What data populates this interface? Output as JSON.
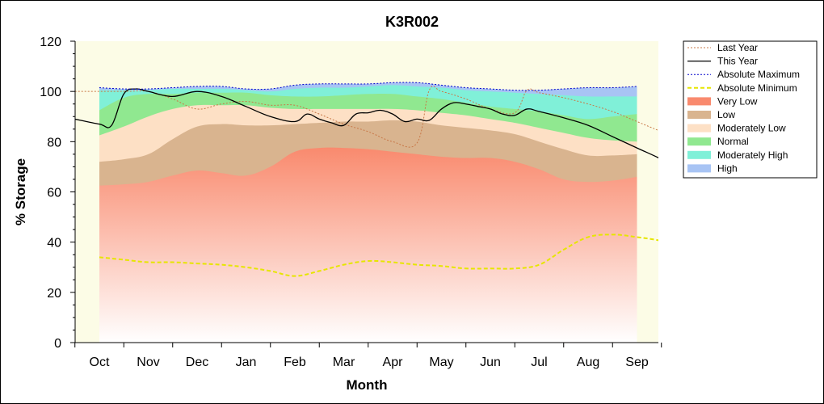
{
  "chart_data": {
    "type": "area",
    "title": "K3R002",
    "xlabel": "Month",
    "ylabel": "% Storage",
    "ylim": [
      0,
      120
    ],
    "yticks": [
      0,
      20,
      40,
      60,
      80,
      100,
      120
    ],
    "months": [
      "Oct",
      "Nov",
      "Dec",
      "Jan",
      "Feb",
      "Mar",
      "Apr",
      "May",
      "Jun",
      "Jul",
      "Aug",
      "Sep"
    ],
    "legend_position": "right",
    "bands": [
      {
        "name": "Very Low",
        "color": "#f98a6e",
        "upper": [
          [
            0,
            62.5
          ],
          [
            0.5,
            63
          ],
          [
            1,
            64
          ],
          [
            1.5,
            66.5
          ],
          [
            2,
            68.5
          ],
          [
            2.5,
            67.5
          ],
          [
            3,
            66.5
          ],
          [
            3.5,
            70
          ],
          [
            4,
            76
          ],
          [
            4.5,
            77.5
          ],
          [
            5,
            77.5
          ],
          [
            5.5,
            77
          ],
          [
            6,
            76
          ],
          [
            6.5,
            75
          ],
          [
            7,
            74
          ],
          [
            7.5,
            73.5
          ],
          [
            8,
            73.5
          ],
          [
            8.5,
            72
          ],
          [
            9,
            69
          ],
          [
            9.5,
            65
          ],
          [
            10,
            64
          ],
          [
            10.5,
            64.5
          ],
          [
            11,
            66
          ]
        ]
      },
      {
        "name": "Low",
        "color": "#d9b48f",
        "upper": [
          [
            0,
            72
          ],
          [
            0.5,
            73
          ],
          [
            1,
            75
          ],
          [
            1.5,
            81
          ],
          [
            2,
            86
          ],
          [
            2.5,
            87
          ],
          [
            3,
            86.5
          ],
          [
            3.5,
            86.5
          ],
          [
            4,
            87
          ],
          [
            4.5,
            87.5
          ],
          [
            5,
            88
          ],
          [
            5.5,
            88
          ],
          [
            6,
            88.5
          ],
          [
            6.5,
            88
          ],
          [
            7,
            86.5
          ],
          [
            7.5,
            85.5
          ],
          [
            8,
            84.5
          ],
          [
            8.5,
            83
          ],
          [
            9,
            80
          ],
          [
            9.5,
            77
          ],
          [
            10,
            74.5
          ],
          [
            10.5,
            74.5
          ],
          [
            11,
            75
          ]
        ]
      },
      {
        "name": "Moderately Low",
        "color": "#fde0c5",
        "upper": [
          [
            0,
            82.5
          ],
          [
            0.5,
            86
          ],
          [
            1,
            90
          ],
          [
            1.5,
            93
          ],
          [
            2,
            94.5
          ],
          [
            2.5,
            94.5
          ],
          [
            3,
            94.5
          ],
          [
            3.5,
            93.5
          ],
          [
            4,
            93
          ],
          [
            4.5,
            93
          ],
          [
            5,
            93
          ],
          [
            5.5,
            93
          ],
          [
            6,
            93
          ],
          [
            6.5,
            92.5
          ],
          [
            7,
            91.5
          ],
          [
            7.5,
            90.5
          ],
          [
            8,
            89
          ],
          [
            8.5,
            87.5
          ],
          [
            9,
            85.5
          ],
          [
            9.5,
            83.5
          ],
          [
            10,
            81.5
          ],
          [
            10.5,
            80.5
          ],
          [
            11,
            80
          ]
        ]
      },
      {
        "name": "Normal",
        "color": "#90e890",
        "upper": [
          [
            0,
            92.5
          ],
          [
            0.5,
            97.5
          ],
          [
            1,
            99
          ],
          [
            1.5,
            99
          ],
          [
            2,
            99.5
          ],
          [
            2.5,
            99.5
          ],
          [
            3,
            99.5
          ],
          [
            3.5,
            98.5
          ],
          [
            4,
            98
          ],
          [
            4.5,
            98
          ],
          [
            5,
            98.5
          ],
          [
            5.5,
            99
          ],
          [
            6,
            99
          ],
          [
            6.5,
            98
          ],
          [
            7,
            97
          ],
          [
            7.5,
            95.5
          ],
          [
            8,
            94
          ],
          [
            8.5,
            93
          ],
          [
            9,
            92
          ],
          [
            9.5,
            90.5
          ],
          [
            10,
            89
          ],
          [
            10.5,
            90
          ],
          [
            11,
            91
          ]
        ]
      },
      {
        "name": "Moderately High",
        "color": "#80f0d8",
        "upper": [
          [
            0,
            100.5
          ],
          [
            0.5,
            100.5
          ],
          [
            1,
            100.5
          ],
          [
            1.5,
            101
          ],
          [
            2,
            101
          ],
          [
            2.5,
            101
          ],
          [
            3,
            100.5
          ],
          [
            3.5,
            100
          ],
          [
            4,
            101
          ],
          [
            4.5,
            101.5
          ],
          [
            5,
            101.5
          ],
          [
            5.5,
            102
          ],
          [
            6,
            102.5
          ],
          [
            6.5,
            102
          ],
          [
            7,
            101.5
          ],
          [
            7.5,
            100.5
          ],
          [
            8,
            100
          ],
          [
            8.5,
            99.5
          ],
          [
            9,
            99
          ],
          [
            9.5,
            98.5
          ],
          [
            10,
            98
          ],
          [
            10.5,
            98
          ],
          [
            11,
            98
          ]
        ]
      },
      {
        "name": "High",
        "color": "#a8c4f4",
        "upper": [
          [
            0,
            101.5
          ],
          [
            0.5,
            101
          ],
          [
            1,
            101
          ],
          [
            1.5,
            101.5
          ],
          [
            2,
            102
          ],
          [
            2.5,
            102
          ],
          [
            3,
            101
          ],
          [
            3.5,
            101
          ],
          [
            4,
            102.5
          ],
          [
            4.5,
            103
          ],
          [
            5,
            103
          ],
          [
            5.5,
            103
          ],
          [
            6,
            103.5
          ],
          [
            6.5,
            103.5
          ],
          [
            7,
            102.5
          ],
          [
            7.5,
            101.5
          ],
          [
            8,
            101
          ],
          [
            8.5,
            100.5
          ],
          [
            9,
            100.5
          ],
          [
            9.5,
            101
          ],
          [
            10,
            101.5
          ],
          [
            10.5,
            101.5
          ],
          [
            11,
            102
          ]
        ]
      }
    ],
    "series": [
      {
        "name": "Last Year",
        "color": "#c87848",
        "style": "dot",
        "points": [
          [
            -0.5,
            100
          ],
          [
            0,
            100
          ],
          [
            0.5,
            100
          ],
          [
            1,
            100
          ],
          [
            1.5,
            97
          ],
          [
            2,
            93
          ],
          [
            2.5,
            95
          ],
          [
            3,
            96
          ],
          [
            3.5,
            94.5
          ],
          [
            4,
            94.5
          ],
          [
            4.5,
            91
          ],
          [
            5,
            87
          ],
          [
            5.5,
            84
          ],
          [
            6,
            80
          ],
          [
            6.5,
            79.5
          ],
          [
            6.75,
            100.5
          ],
          [
            7,
            100
          ],
          [
            7.5,
            97
          ],
          [
            8,
            93
          ],
          [
            8.5,
            91.5
          ],
          [
            8.75,
            100.5
          ],
          [
            9,
            99.5
          ],
          [
            9.5,
            97.5
          ],
          [
            10,
            95
          ],
          [
            10.5,
            92
          ],
          [
            11,
            88
          ],
          [
            11.5,
            84
          ],
          [
            11.8,
            82
          ],
          [
            12,
            80
          ],
          [
            12.3,
            87
          ],
          [
            12.6,
            90
          ]
        ]
      },
      {
        "name": "This Year",
        "color": "#000000",
        "style": "solid",
        "points": [
          [
            -0.5,
            89
          ],
          [
            0,
            87
          ],
          [
            0.25,
            86.5
          ],
          [
            0.5,
            99
          ],
          [
            0.75,
            101
          ],
          [
            1,
            100
          ],
          [
            1.5,
            98
          ],
          [
            2,
            100
          ],
          [
            2.5,
            98
          ],
          [
            3,
            94
          ],
          [
            3.5,
            90
          ],
          [
            4,
            88
          ],
          [
            4.25,
            91
          ],
          [
            4.5,
            89
          ],
          [
            4.75,
            87.5
          ],
          [
            5,
            86.5
          ],
          [
            5.25,
            91
          ],
          [
            5.5,
            91.5
          ],
          [
            5.75,
            92.5
          ],
          [
            6,
            91
          ],
          [
            6.25,
            88
          ],
          [
            6.5,
            89
          ],
          [
            6.75,
            88.5
          ],
          [
            7,
            93
          ],
          [
            7.25,
            95.5
          ],
          [
            7.5,
            95
          ],
          [
            7.75,
            94
          ],
          [
            8,
            93
          ],
          [
            8.25,
            91
          ],
          [
            8.5,
            90.5
          ],
          [
            8.75,
            93
          ],
          [
            9,
            92
          ],
          [
            9.5,
            89.5
          ],
          [
            10,
            86.5
          ],
          [
            10.5,
            82
          ],
          [
            11,
            77.5
          ],
          [
            11.5,
            73
          ],
          [
            11.75,
            70
          ]
        ]
      },
      {
        "name": "Absolute Maximum",
        "color": "#0000cc",
        "style": "dot",
        "points": [
          [
            0,
            101.5
          ],
          [
            0.5,
            101
          ],
          [
            1,
            101
          ],
          [
            1.5,
            101.5
          ],
          [
            2,
            102
          ],
          [
            2.5,
            102
          ],
          [
            3,
            101
          ],
          [
            3.5,
            101
          ],
          [
            4,
            102.5
          ],
          [
            4.5,
            103
          ],
          [
            5,
            103
          ],
          [
            5.5,
            103
          ],
          [
            6,
            103.5
          ],
          [
            6.5,
            103.5
          ],
          [
            7,
            102.5
          ],
          [
            7.5,
            101.5
          ],
          [
            8,
            101
          ],
          [
            8.5,
            100.5
          ],
          [
            9,
            100.5
          ],
          [
            9.5,
            101
          ],
          [
            10,
            101.5
          ],
          [
            10.5,
            101.5
          ],
          [
            11,
            102
          ]
        ]
      },
      {
        "name": "Absolute Minimum",
        "color": "#e6e600",
        "style": "dash",
        "points": [
          [
            0,
            34
          ],
          [
            0.5,
            33
          ],
          [
            1,
            32
          ],
          [
            1.5,
            32
          ],
          [
            2,
            31.5
          ],
          [
            2.5,
            31
          ],
          [
            3,
            30
          ],
          [
            3.5,
            28.5
          ],
          [
            4,
            26.5
          ],
          [
            4.5,
            28.5
          ],
          [
            5,
            31
          ],
          [
            5.5,
            32.5
          ],
          [
            6,
            32
          ],
          [
            6.5,
            31
          ],
          [
            7,
            30.5
          ],
          [
            7.5,
            29.5
          ],
          [
            8,
            29.5
          ],
          [
            8.5,
            29.5
          ],
          [
            9,
            31
          ],
          [
            9.5,
            37
          ],
          [
            10,
            42
          ],
          [
            10.5,
            43
          ],
          [
            11,
            42
          ],
          [
            11.5,
            40.5
          ],
          [
            12,
            38
          ],
          [
            12.5,
            35.5
          ]
        ]
      }
    ],
    "legend": [
      {
        "label": "Last Year",
        "kind": "line",
        "color": "#c87848",
        "style": "dot"
      },
      {
        "label": "This Year",
        "kind": "line",
        "color": "#000000",
        "style": "solid"
      },
      {
        "label": "Absolute Maximum",
        "kind": "line",
        "color": "#0000cc",
        "style": "dot"
      },
      {
        "label": "Absolute Minimum",
        "kind": "line",
        "color": "#e6e600",
        "style": "dash"
      },
      {
        "label": "Very Low",
        "kind": "patch",
        "color": "#f98a6e"
      },
      {
        "label": "Low",
        "kind": "patch",
        "color": "#d9b48f"
      },
      {
        "label": "Moderately Low",
        "kind": "patch",
        "color": "#fde0c5"
      },
      {
        "label": "Normal",
        "kind": "patch",
        "color": "#90e890"
      },
      {
        "label": "Moderately High",
        "kind": "patch",
        "color": "#80f0d8"
      },
      {
        "label": "High",
        "kind": "patch",
        "color": "#a8c4f4"
      }
    ]
  }
}
